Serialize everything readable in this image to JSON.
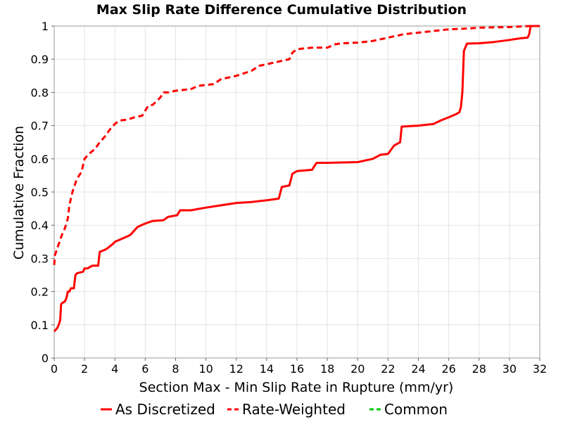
{
  "chart_data": {
    "type": "line",
    "title": "Max Slip Rate Difference Cumulative Distribution",
    "xlabel": "Section Max - Min Slip Rate in Rupture (mm/yr)",
    "ylabel": "Cumulative Fraction",
    "xlim": [
      0,
      32
    ],
    "ylim": [
      0,
      1
    ],
    "xticks": [
      0,
      2,
      4,
      6,
      8,
      10,
      12,
      14,
      16,
      18,
      20,
      22,
      24,
      26,
      28,
      30,
      32
    ],
    "yticks": [
      0,
      0.1,
      0.2,
      0.3,
      0.4,
      0.5,
      0.6,
      0.7,
      0.8,
      0.9,
      1
    ],
    "ytick_labels": [
      "0",
      "0.1",
      "0.2",
      "0.3",
      "0.4",
      "0.5",
      "0.6",
      "0.7",
      "0.8",
      "0.9",
      "1"
    ],
    "grid": true,
    "legend_position": "bottom",
    "series": [
      {
        "name": "As Discretized",
        "color": "#ff0000",
        "style": "solid",
        "x": [
          0,
          0.1,
          0.2,
          0.3,
          0.4,
          0.45,
          0.5,
          0.7,
          0.8,
          0.9,
          1.0,
          1.1,
          1.3,
          1.4,
          1.5,
          1.9,
          2.0,
          2.2,
          2.5,
          2.9,
          3.0,
          3.3,
          3.5,
          3.9,
          4.0,
          4.5,
          5.0,
          5.3,
          5.5,
          6.0,
          6.5,
          7.2,
          7.5,
          8.1,
          8.3,
          9.0,
          10.0,
          11.0,
          12.0,
          13.0,
          14.0,
          14.8,
          15.0,
          15.5,
          15.7,
          16.0,
          17.0,
          17.1,
          17.3,
          18.0,
          19.0,
          20.0,
          20.5,
          21.0,
          21.5,
          22.0,
          22.4,
          22.8,
          22.9,
          24.0,
          25.0,
          25.5,
          26.0,
          26.5,
          26.7,
          26.8,
          26.9,
          27.0,
          27.2,
          28.0,
          29.0,
          30.0,
          30.7,
          31.2,
          31.3,
          31.4,
          32.0
        ],
        "y": [
          0.08,
          0.085,
          0.09,
          0.1,
          0.115,
          0.16,
          0.165,
          0.17,
          0.18,
          0.2,
          0.2,
          0.21,
          0.21,
          0.25,
          0.255,
          0.26,
          0.27,
          0.27,
          0.278,
          0.278,
          0.32,
          0.325,
          0.33,
          0.345,
          0.35,
          0.36,
          0.37,
          0.385,
          0.395,
          0.405,
          0.413,
          0.415,
          0.425,
          0.43,
          0.445,
          0.445,
          0.453,
          0.46,
          0.467,
          0.47,
          0.475,
          0.48,
          0.515,
          0.52,
          0.555,
          0.563,
          0.567,
          0.575,
          0.588,
          0.588,
          0.589,
          0.59,
          0.595,
          0.6,
          0.612,
          0.615,
          0.64,
          0.65,
          0.697,
          0.7,
          0.705,
          0.716,
          0.725,
          0.735,
          0.74,
          0.755,
          0.8,
          0.925,
          0.947,
          0.948,
          0.952,
          0.958,
          0.963,
          0.965,
          0.975,
          1.0,
          1.0
        ]
      },
      {
        "name": "Rate-Weighted",
        "color": "#ff0000",
        "style": "dashed",
        "x": [
          0,
          0.05,
          0.2,
          0.5,
          0.7,
          0.9,
          1.0,
          1.2,
          1.5,
          1.8,
          2.0,
          2.3,
          2.7,
          3.0,
          3.3,
          3.7,
          4.0,
          4.3,
          4.8,
          5.3,
          5.8,
          6.2,
          6.5,
          7.0,
          7.2,
          7.5,
          8.0,
          9.0,
          9.5,
          10.5,
          11.0,
          12.0,
          13.0,
          13.5,
          14.0,
          15.5,
          15.7,
          16.0,
          17.0,
          18.0,
          18.5,
          19.0,
          20.0,
          21.0,
          22.0,
          23.0,
          24.0,
          25.0,
          26.0,
          27.0,
          28.0,
          29.0,
          30.0,
          30.5,
          31.0,
          31.3,
          32.0
        ],
        "y": [
          0.28,
          0.31,
          0.33,
          0.37,
          0.39,
          0.42,
          0.46,
          0.5,
          0.54,
          0.56,
          0.6,
          0.615,
          0.63,
          0.65,
          0.665,
          0.69,
          0.705,
          0.715,
          0.718,
          0.725,
          0.73,
          0.76,
          0.763,
          0.785,
          0.8,
          0.8,
          0.805,
          0.81,
          0.82,
          0.825,
          0.84,
          0.85,
          0.865,
          0.88,
          0.885,
          0.9,
          0.92,
          0.93,
          0.935,
          0.935,
          0.945,
          0.948,
          0.95,
          0.955,
          0.965,
          0.975,
          0.98,
          0.985,
          0.99,
          0.992,
          0.995,
          0.996,
          0.997,
          0.998,
          0.999,
          1.0,
          1.0
        ]
      },
      {
        "name": "Common",
        "color": "#00cc00",
        "style": "dashed",
        "x": [],
        "y": []
      }
    ]
  }
}
